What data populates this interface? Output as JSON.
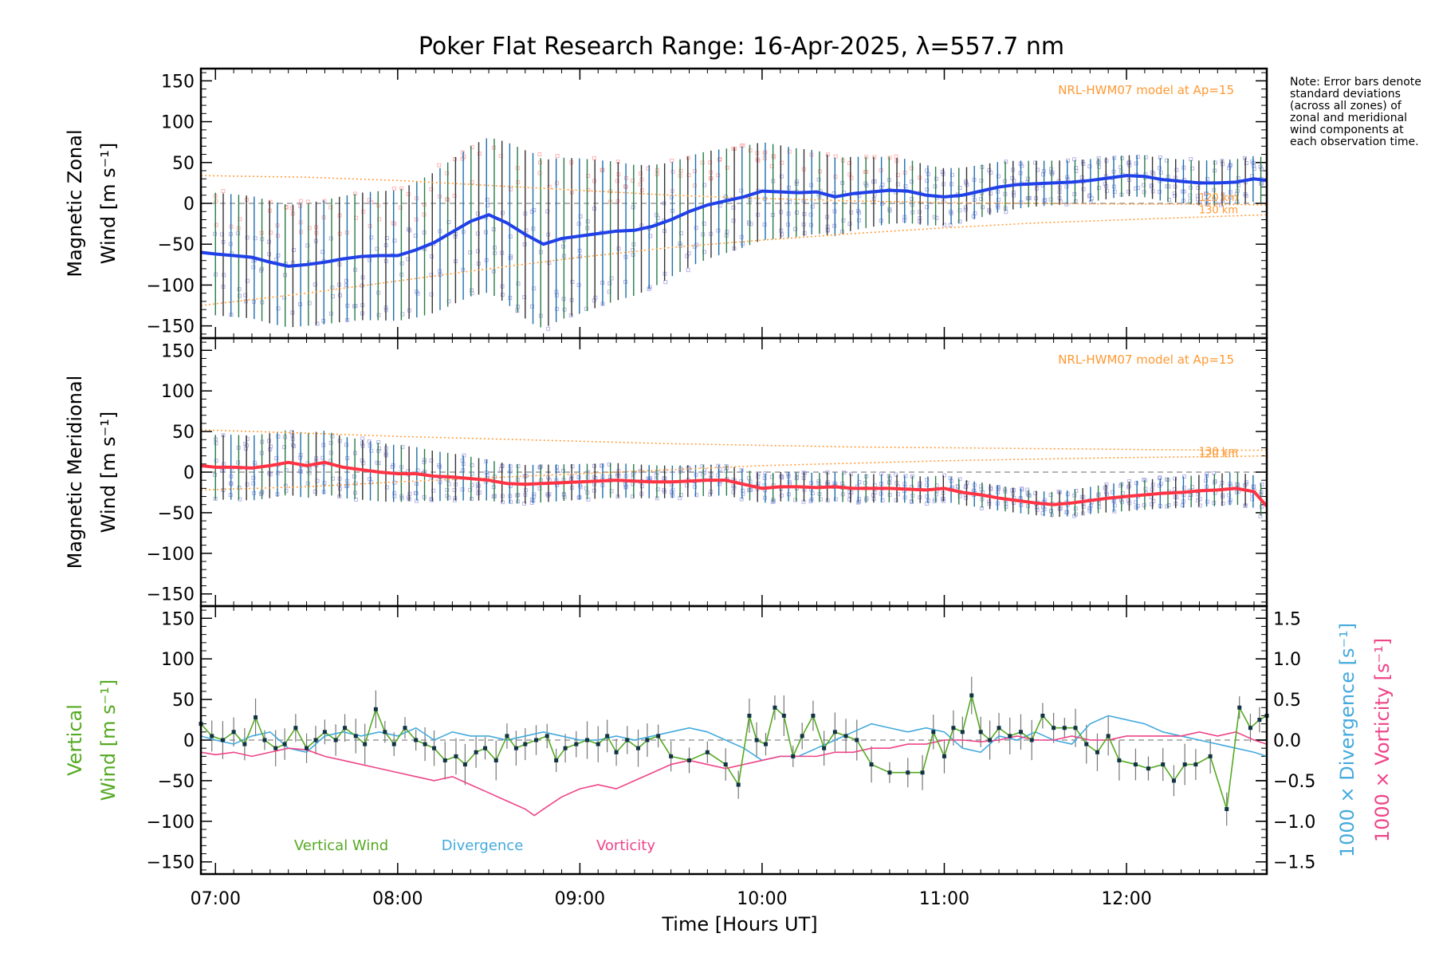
{
  "figure": {
    "title": "Poker Flat Research Range: 16-Apr-2025, λ=557.7 nm",
    "xlabel": "Time [Hours UT]",
    "note": "Note: Error bars denote standard deviations (across all zones) of zonal and meridional wind components at each observation time."
  },
  "chart_data": [
    {
      "type": "line",
      "panel": "zonal",
      "ylabel_line1": "Magnetic Zonal",
      "ylabel_line2": "Wind [m s⁻¹]",
      "ylim": [
        -165,
        165
      ],
      "yticks": [
        -150,
        -100,
        -50,
        0,
        50,
        100,
        150
      ],
      "xlim": [
        6.92,
        12.77
      ],
      "xticks": [
        7,
        8,
        9,
        10,
        11,
        12
      ],
      "xticklabels": [
        "07:00",
        "08:00",
        "09:00",
        "10:00",
        "11:00",
        "12:00"
      ],
      "model_label": "NRL-HWM07 model at Ap=15",
      "model_level_labels": [
        "120 km",
        "130 km"
      ],
      "colors": {
        "mean": "#2040e8",
        "model": "#ff9933",
        "errorbar": "#2a8a8a",
        "samples": "#9999dd",
        "samples_alt": "#ff9999"
      },
      "mean": {
        "x": [
          6.92,
          7.0,
          7.1,
          7.2,
          7.3,
          7.4,
          7.5,
          7.6,
          7.7,
          7.8,
          7.9,
          8.0,
          8.1,
          8.2,
          8.3,
          8.4,
          8.5,
          8.6,
          8.7,
          8.8,
          8.9,
          9.0,
          9.1,
          9.2,
          9.3,
          9.4,
          9.5,
          9.6,
          9.7,
          9.8,
          9.9,
          10.0,
          10.1,
          10.2,
          10.3,
          10.4,
          10.5,
          10.6,
          10.7,
          10.8,
          10.9,
          11.0,
          11.1,
          11.2,
          11.3,
          11.4,
          11.5,
          11.6,
          11.7,
          11.8,
          11.9,
          12.0,
          12.1,
          12.2,
          12.3,
          12.4,
          12.5,
          12.6,
          12.7,
          12.77
        ],
        "y": [
          -60,
          -62,
          -64,
          -66,
          -72,
          -77,
          -75,
          -72,
          -68,
          -65,
          -64,
          -64,
          -57,
          -48,
          -35,
          -22,
          -14,
          -24,
          -38,
          -50,
          -43,
          -40,
          -37,
          -34,
          -33,
          -28,
          -20,
          -10,
          -2,
          3,
          8,
          15,
          14,
          13,
          14,
          8,
          12,
          14,
          16,
          15,
          10,
          8,
          10,
          15,
          20,
          23,
          24,
          25,
          26,
          28,
          31,
          34,
          33,
          29,
          27,
          25,
          25,
          26,
          30,
          28
        ]
      },
      "model_120km": {
        "x": [
          6.92,
          7.5,
          8.0,
          8.5,
          9.0,
          9.5,
          10.0,
          10.5,
          11.0,
          11.5,
          12.0,
          12.5,
          12.77
        ],
        "y": [
          34,
          32,
          28,
          22,
          16,
          10,
          6,
          3,
          1,
          0,
          -1,
          -1,
          -2
        ]
      },
      "model_130km": {
        "x": [
          6.92,
          7.5,
          8.0,
          8.5,
          9.0,
          9.5,
          10.0,
          10.5,
          11.0,
          11.5,
          12.0,
          12.5,
          12.77
        ],
        "y": [
          -125,
          -110,
          -95,
          -80,
          -66,
          -54,
          -45,
          -37,
          -30,
          -24,
          -20,
          -16,
          -14
        ]
      },
      "errorbar_sigma": {
        "x": [
          7.0,
          7.5,
          8.0,
          8.5,
          8.75,
          9.0,
          9.5,
          10.0,
          10.5,
          11.0,
          11.5,
          12.0,
          12.5
        ],
        "y": [
          75,
          75,
          80,
          95,
          105,
          95,
          70,
          60,
          45,
          35,
          28,
          25,
          28
        ]
      }
    },
    {
      "type": "line",
      "panel": "meridional",
      "ylabel_line1": "Magnetic Meridional",
      "ylabel_line2": "Wind [m s⁻¹]",
      "ylim": [
        -165,
        165
      ],
      "yticks": [
        -150,
        -100,
        -50,
        0,
        50,
        100,
        150
      ],
      "xlim": [
        6.92,
        12.77
      ],
      "xticks": [
        7,
        8,
        9,
        10,
        11,
        12
      ],
      "model_label": "NRL-HWM07 model at Ap=15",
      "model_level_labels": [
        "120 km",
        "130 km"
      ],
      "colors": {
        "mean": "#ff3344",
        "model": "#ff9933",
        "errorbar": "#2a8a8a",
        "samples": "#9999dd"
      },
      "mean": {
        "x": [
          6.92,
          7.0,
          7.1,
          7.2,
          7.3,
          7.4,
          7.5,
          7.6,
          7.7,
          7.8,
          7.9,
          8.0,
          8.1,
          8.2,
          8.3,
          8.4,
          8.5,
          8.6,
          8.7,
          8.8,
          8.9,
          9.0,
          9.1,
          9.2,
          9.3,
          9.4,
          9.5,
          9.6,
          9.7,
          9.8,
          9.9,
          10.0,
          10.1,
          10.2,
          10.3,
          10.4,
          10.5,
          10.6,
          10.7,
          10.8,
          10.9,
          11.0,
          11.1,
          11.2,
          11.3,
          11.4,
          11.5,
          11.6,
          11.7,
          11.8,
          11.9,
          12.0,
          12.1,
          12.2,
          12.3,
          12.4,
          12.5,
          12.6,
          12.7,
          12.77
        ],
        "y": [
          8,
          6,
          6,
          5,
          8,
          12,
          8,
          12,
          6,
          3,
          0,
          -2,
          -2,
          -5,
          -6,
          -8,
          -10,
          -14,
          -15,
          -14,
          -13,
          -12,
          -11,
          -10,
          -11,
          -12,
          -12,
          -11,
          -10,
          -10,
          -15,
          -20,
          -18,
          -18,
          -19,
          -18,
          -20,
          -20,
          -20,
          -21,
          -22,
          -20,
          -25,
          -28,
          -32,
          -35,
          -38,
          -40,
          -38,
          -35,
          -32,
          -30,
          -28,
          -26,
          -25,
          -23,
          -22,
          -20,
          -24,
          -42
        ]
      },
      "model_120km": {
        "x": [
          6.92,
          7.5,
          8.0,
          8.5,
          9.0,
          9.5,
          10.0,
          10.5,
          11.0,
          11.5,
          12.0,
          12.5,
          12.77
        ],
        "y": [
          52,
          48,
          44,
          41,
          38,
          35,
          33,
          31,
          30,
          29,
          28,
          27,
          27
        ]
      },
      "model_130km": {
        "x": [
          6.92,
          7.5,
          8.0,
          8.5,
          9.0,
          9.5,
          10.0,
          10.5,
          11.0,
          11.5,
          12.0,
          12.5,
          12.77
        ],
        "y": [
          -22,
          -18,
          -12,
          -7,
          -2,
          3,
          8,
          11,
          14,
          16,
          18,
          19,
          20
        ]
      },
      "errorbar_sigma": {
        "x": [
          7.0,
          7.5,
          8.0,
          8.5,
          9.0,
          9.5,
          10.0,
          10.5,
          11.0,
          11.5,
          12.0,
          12.5
        ],
        "y": [
          40,
          40,
          35,
          25,
          22,
          20,
          18,
          18,
          16,
          15,
          18,
          20
        ]
      }
    },
    {
      "type": "line",
      "panel": "vertical",
      "ylabel_line1": "Vertical",
      "ylabel_line2": "Wind [m s⁻¹]",
      "right_label_divergence": "1000 × Divergence [s⁻¹]",
      "right_label_vorticity": "1000 × Vorticity [s⁻¹]",
      "ylim": [
        -165,
        165
      ],
      "yticks": [
        -150,
        -100,
        -50,
        0,
        50,
        100,
        150
      ],
      "y2lim": [
        -1.65,
        1.65
      ],
      "y2ticks": [
        -1.5,
        -1.0,
        -0.5,
        0.0,
        0.5,
        1.0,
        1.5
      ],
      "y2ticklabels": [
        "−1.5",
        "−1.0",
        "−0.5",
        "0.0",
        "0.5",
        "1.0",
        "1.5"
      ],
      "xlim": [
        6.92,
        12.77
      ],
      "xticks": [
        7,
        8,
        9,
        10,
        11,
        12
      ],
      "legend": [
        "Vertical Wind",
        "Divergence",
        "Vorticity"
      ],
      "colors": {
        "vertical": "#55aa22",
        "divergence": "#44aadd",
        "vorticity": "#ee4488",
        "errorbar": "#777777",
        "point": "#113344"
      },
      "series": [
        {
          "name": "Vertical Wind",
          "axis": "left",
          "x": [
            6.92,
            6.98,
            7.04,
            7.1,
            7.16,
            7.22,
            7.27,
            7.33,
            7.38,
            7.44,
            7.5,
            7.55,
            7.6,
            7.66,
            7.71,
            7.77,
            7.82,
            7.88,
            7.93,
            7.98,
            8.04,
            8.1,
            8.15,
            8.2,
            8.26,
            8.32,
            8.37,
            8.43,
            8.48,
            8.54,
            8.6,
            8.65,
            8.7,
            8.76,
            8.82,
            8.87,
            8.92,
            8.98,
            9.04,
            9.1,
            9.15,
            9.2,
            9.26,
            9.32,
            9.37,
            9.43,
            9.5,
            9.6,
            9.7,
            9.8,
            9.87,
            9.93,
            9.97,
            10.02,
            10.07,
            10.12,
            10.17,
            10.22,
            10.28,
            10.34,
            10.4,
            10.46,
            10.52,
            10.6,
            10.7,
            10.8,
            10.88,
            10.94,
            11.0,
            11.05,
            11.1,
            11.15,
            11.2,
            11.25,
            11.3,
            11.36,
            11.42,
            11.48,
            11.54,
            11.6,
            11.66,
            11.72,
            11.78,
            11.84,
            11.9,
            11.96,
            12.05,
            12.12,
            12.2,
            12.26,
            12.32,
            12.38,
            12.46,
            12.55,
            12.62,
            12.68,
            12.73,
            12.77
          ],
          "y": [
            20,
            5,
            0,
            10,
            -5,
            28,
            0,
            -10,
            -5,
            15,
            -10,
            0,
            10,
            0,
            15,
            5,
            -5,
            38,
            10,
            -5,
            15,
            0,
            -5,
            -10,
            -25,
            -20,
            -30,
            -15,
            -10,
            -25,
            5,
            -10,
            -5,
            0,
            5,
            -25,
            -10,
            -5,
            0,
            -5,
            5,
            -15,
            0,
            -10,
            0,
            5,
            -20,
            -25,
            -15,
            -30,
            -55,
            30,
            0,
            -5,
            40,
            30,
            -20,
            5,
            30,
            -10,
            10,
            5,
            0,
            -30,
            -40,
            -40,
            -40,
            10,
            -20,
            15,
            10,
            55,
            10,
            0,
            15,
            5,
            10,
            0,
            30,
            15,
            15,
            15,
            -5,
            -15,
            5,
            -25,
            -30,
            -35,
            -30,
            -50,
            -30,
            -30,
            -20,
            -85,
            40,
            15,
            25,
            30
          ]
        },
        {
          "name": "Divergence",
          "axis": "right",
          "x": [
            6.92,
            7.0,
            7.1,
            7.2,
            7.3,
            7.4,
            7.5,
            7.6,
            7.7,
            7.8,
            7.9,
            8.0,
            8.1,
            8.2,
            8.3,
            8.4,
            8.5,
            8.6,
            8.7,
            8.8,
            8.9,
            9.0,
            9.1,
            9.2,
            9.3,
            9.4,
            9.5,
            9.6,
            9.7,
            9.8,
            9.9,
            10.0,
            10.1,
            10.2,
            10.3,
            10.4,
            10.5,
            10.6,
            10.7,
            10.8,
            10.9,
            11.0,
            11.1,
            11.2,
            11.3,
            11.4,
            11.5,
            11.6,
            11.7,
            11.8,
            11.9,
            12.0,
            12.1,
            12.2,
            12.3,
            12.4,
            12.5,
            12.6,
            12.7,
            12.77
          ],
          "y": [
            0.05,
            0.0,
            -0.05,
            0.05,
            0.1,
            -0.1,
            -0.15,
            0.05,
            0.1,
            0.05,
            0.1,
            0.05,
            0.15,
            0.0,
            0.1,
            0.05,
            0.05,
            0.0,
            0.05,
            0.1,
            0.05,
            0.0,
            0.0,
            0.05,
            0.0,
            0.05,
            0.1,
            0.15,
            0.1,
            0.0,
            -0.1,
            -0.25,
            -0.2,
            -0.2,
            -0.1,
            0.0,
            0.1,
            0.2,
            0.15,
            0.1,
            0.15,
            0.1,
            -0.1,
            -0.15,
            0.05,
            0.0,
            0.1,
            0.0,
            -0.05,
            0.2,
            0.3,
            0.25,
            0.2,
            0.1,
            0.05,
            0.0,
            -0.05,
            -0.1,
            -0.15,
            -0.2
          ]
        },
        {
          "name": "Vorticity",
          "axis": "right",
          "x": [
            6.92,
            7.0,
            7.1,
            7.2,
            7.3,
            7.4,
            7.5,
            7.6,
            7.7,
            7.8,
            7.9,
            8.0,
            8.1,
            8.2,
            8.3,
            8.4,
            8.5,
            8.6,
            8.7,
            8.75,
            8.8,
            8.9,
            9.0,
            9.1,
            9.2,
            9.3,
            9.4,
            9.5,
            9.6,
            9.7,
            9.8,
            9.9,
            10.0,
            10.1,
            10.2,
            10.3,
            10.4,
            10.5,
            10.6,
            10.7,
            10.8,
            10.9,
            11.0,
            11.1,
            11.2,
            11.3,
            11.4,
            11.5,
            11.6,
            11.7,
            11.8,
            11.9,
            12.0,
            12.1,
            12.2,
            12.3,
            12.4,
            12.5,
            12.6,
            12.7,
            12.77
          ],
          "y": [
            -0.15,
            -0.18,
            -0.15,
            -0.2,
            -0.15,
            -0.1,
            -0.12,
            -0.2,
            -0.25,
            -0.3,
            -0.35,
            -0.4,
            -0.45,
            -0.5,
            -0.45,
            -0.55,
            -0.65,
            -0.75,
            -0.85,
            -0.93,
            -0.85,
            -0.7,
            -0.6,
            -0.55,
            -0.6,
            -0.5,
            -0.4,
            -0.3,
            -0.25,
            -0.3,
            -0.35,
            -0.3,
            -0.25,
            -0.2,
            -0.2,
            -0.2,
            -0.15,
            -0.15,
            -0.1,
            -0.1,
            -0.05,
            -0.05,
            0.0,
            0.0,
            -0.02,
            0.0,
            0.05,
            0.0,
            0.0,
            0.05,
            0.0,
            0.0,
            0.05,
            0.05,
            0.05,
            0.05,
            0.1,
            0.05,
            0.1,
            0.0,
            -0.05
          ]
        }
      ]
    }
  ]
}
